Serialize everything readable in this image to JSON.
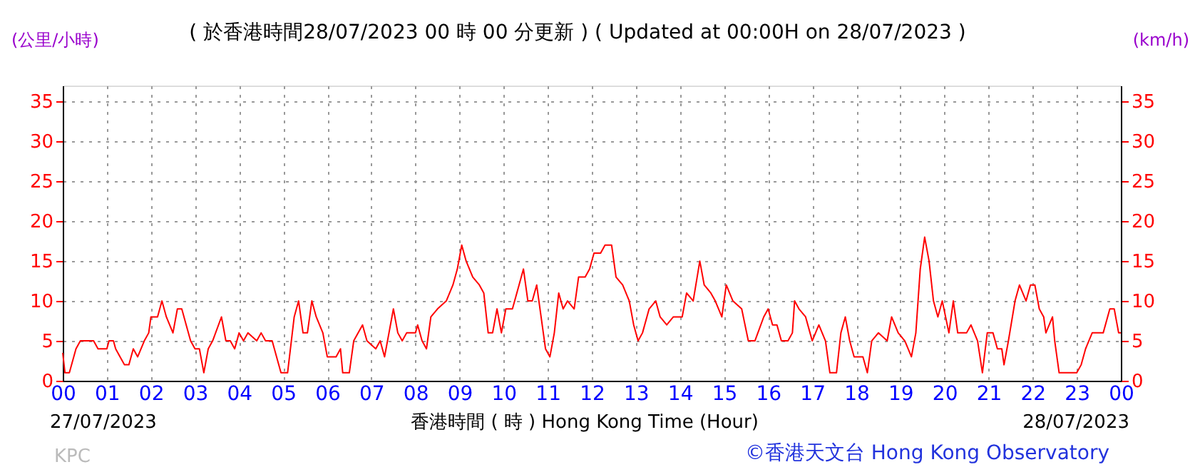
{
  "chart_data": {
    "type": "line",
    "title": "( 於香港時間28/07/2023 00 時 00 分更新 ) ( Updated at 00:00H on 28/07/2023 )",
    "ylabel": "(公里/小時)",
    "y2label": "(km/h)",
    "xlabel": "香港時間 ( 時 ) Hong Kong Time (Hour)",
    "annotations": [
      "27/07/2023",
      "28/07/2023",
      "KPC",
      "©香港天文台 Hong Kong Observatory"
    ],
    "xlim": [
      0,
      24
    ],
    "ylim": [
      0,
      37
    ],
    "y2lim": [
      0,
      37
    ],
    "xticks": [
      {
        "value": 0,
        "label": "00"
      },
      {
        "value": 1,
        "label": "01"
      },
      {
        "value": 2,
        "label": "02"
      },
      {
        "value": 3,
        "label": "03"
      },
      {
        "value": 4,
        "label": "04"
      },
      {
        "value": 5,
        "label": "05"
      },
      {
        "value": 6,
        "label": "06"
      },
      {
        "value": 7,
        "label": "07"
      },
      {
        "value": 8,
        "label": "08"
      },
      {
        "value": 9,
        "label": "09"
      },
      {
        "value": 10,
        "label": "10"
      },
      {
        "value": 11,
        "label": "11"
      },
      {
        "value": 12,
        "label": "12"
      },
      {
        "value": 13,
        "label": "13"
      },
      {
        "value": 14,
        "label": "14"
      },
      {
        "value": 15,
        "label": "15"
      },
      {
        "value": 16,
        "label": "16"
      },
      {
        "value": 17,
        "label": "17"
      },
      {
        "value": 18,
        "label": "18"
      },
      {
        "value": 19,
        "label": "19"
      },
      {
        "value": 20,
        "label": "20"
      },
      {
        "value": 21,
        "label": "21"
      },
      {
        "value": 22,
        "label": "22"
      },
      {
        "value": 23,
        "label": "23"
      },
      {
        "value": 24,
        "label": "00"
      }
    ],
    "yticks": [
      0,
      5,
      10,
      15,
      20,
      25,
      30,
      35
    ],
    "y2ticks": [
      0,
      5,
      10,
      15,
      20,
      25,
      30,
      35
    ],
    "grid": true,
    "marker": "none",
    "line_style": "solid",
    "series": [
      {
        "color": "#ff0000",
        "x": [
          0,
          0.05,
          0.15,
          0.3,
          0.4,
          0.5,
          0.7,
          0.8,
          1.0,
          1.05,
          1.15,
          1.2,
          1.3,
          1.4,
          1.5,
          1.6,
          1.7,
          1.85,
          1.95,
          2.0,
          2.15,
          2.25,
          2.35,
          2.5,
          2.6,
          2.7,
          2.8,
          2.9,
          3.0,
          3.1,
          3.2,
          3.3,
          3.4,
          3.6,
          3.7,
          3.8,
          3.9,
          4.0,
          4.1,
          4.2,
          4.4,
          4.5,
          4.6,
          4.75,
          4.8,
          4.95,
          5.1,
          5.25,
          5.35,
          5.45,
          5.55,
          5.65,
          5.75,
          5.9,
          6.0,
          6.2,
          6.3,
          6.35,
          6.5,
          6.6,
          6.8,
          6.9,
          7.1,
          7.2,
          7.3,
          7.5,
          7.6,
          7.7,
          7.8,
          8.0,
          8.05,
          8.15,
          8.25,
          8.35,
          8.5,
          8.7,
          8.85,
          8.95,
          9.05,
          9.15,
          9.3,
          9.45,
          9.55,
          9.65,
          9.75,
          9.85,
          9.95,
          10.05,
          10.2,
          10.35,
          10.45,
          10.55,
          10.65,
          10.75,
          10.85,
          10.95,
          11.05,
          11.15,
          11.25,
          11.35,
          11.45,
          11.6,
          11.7,
          11.85,
          11.95,
          12.05,
          12.2,
          12.3,
          12.45,
          12.55,
          12.7,
          12.85,
          12.95,
          13.05,
          13.15,
          13.3,
          13.45,
          13.55,
          13.7,
          13.85,
          14.05,
          14.15,
          14.3,
          14.45,
          14.55,
          14.7,
          14.8,
          14.95,
          15.05,
          15.2,
          15.4,
          15.55,
          15.7,
          15.9,
          16.0,
          16.1,
          16.2,
          16.3,
          16.45,
          16.55,
          16.6,
          16.7,
          16.85,
          16.95,
          17.0,
          17.15,
          17.3,
          17.4,
          17.55,
          17.65,
          17.75,
          17.85,
          17.95,
          18.15,
          18.25,
          18.35,
          18.5,
          18.7,
          18.8,
          18.95,
          19.1,
          19.25,
          19.35,
          19.45,
          19.55,
          19.65,
          19.75,
          19.85,
          19.95,
          20.1,
          20.2,
          20.3,
          20.5,
          20.6,
          20.75,
          20.86,
          20.97,
          21.1,
          21.2,
          21.3,
          21.35,
          21.45,
          21.6,
          21.7,
          21.85,
          21.95,
          22.05,
          22.15,
          22.25,
          22.3,
          22.45,
          22.5,
          22.6,
          22.8,
          23.0,
          23.1,
          23.2,
          23.35,
          23.6,
          23.75,
          23.85,
          23.95,
          24
        ],
        "values": [
          3.5,
          1,
          1,
          4,
          5,
          5,
          5,
          4,
          4,
          5,
          5,
          4,
          3,
          2,
          2,
          4,
          3,
          5,
          6,
          8,
          8,
          10,
          8,
          6,
          9,
          9,
          7,
          5,
          4,
          4,
          1,
          4,
          5,
          8,
          5,
          5,
          4,
          6,
          5,
          6,
          5,
          6,
          5,
          5,
          4,
          1,
          1,
          8,
          10,
          6,
          6,
          10,
          8,
          6,
          3,
          3,
          4,
          1,
          1,
          5,
          7,
          5,
          4,
          5,
          3,
          9,
          6,
          5,
          6,
          6,
          7,
          5,
          4,
          8,
          9,
          10,
          12,
          14,
          17,
          15,
          13,
          12,
          11,
          6,
          6,
          9,
          6,
          9,
          9,
          12,
          14,
          10,
          10,
          12,
          8,
          4,
          3,
          6,
          11,
          9,
          10,
          9,
          13,
          13,
          14,
          16,
          16,
          17,
          17,
          13,
          12,
          10,
          7,
          5,
          6,
          9,
          10,
          8,
          7,
          8,
          8,
          11,
          10,
          15,
          12,
          11,
          10,
          8,
          12,
          10,
          9,
          5,
          5,
          8,
          9,
          7,
          7,
          5,
          5,
          6,
          10,
          9,
          8,
          6,
          5,
          7,
          5,
          1,
          1,
          6,
          8,
          5,
          3,
          3,
          1,
          5,
          6,
          5,
          8,
          6,
          5,
          3,
          6,
          14,
          18,
          15,
          10,
          8,
          10,
          6,
          10,
          6,
          6,
          7,
          5,
          1,
          6,
          6,
          4,
          4,
          2,
          5,
          10,
          12,
          10,
          12,
          12,
          9,
          8,
          6,
          8,
          5,
          1,
          1,
          1,
          2,
          4,
          6,
          6,
          9,
          9,
          6,
          6
        ]
      }
    ]
  }
}
